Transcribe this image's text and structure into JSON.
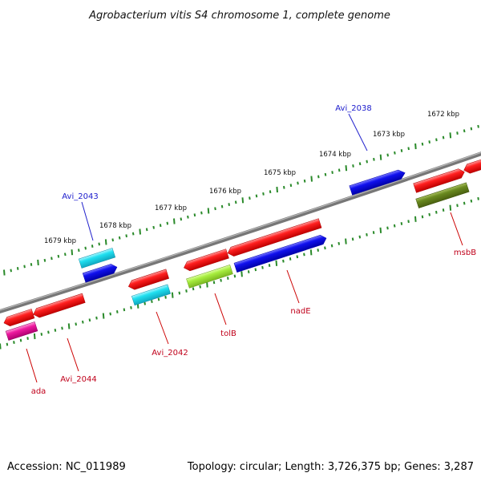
{
  "title": "Agrobacterium vitis S4 chromosome 1, complete genome",
  "accession": "Accession: NC_011989",
  "summary": "Topology: circular; Length: 3,726,375 bp; Genes: 3,287",
  "scale_ticks": [
    "1672 kbp",
    "1673 kbp",
    "1674 kbp",
    "1675 kbp",
    "1676 kbp",
    "1677 kbp",
    "1678 kbp",
    "1679 kbp"
  ],
  "gene_labels": {
    "avi_2038": "Avi_2038",
    "avi_2043": "Avi_2043",
    "msbB": "msbB",
    "nadE": "nadE",
    "tolB": "tolB",
    "avi_2042": "Avi_2042",
    "avi_2044": "Avi_2044",
    "ada": "ada"
  },
  "colors": {
    "backbone": "#808080",
    "tick": "#2a8a2a",
    "red": "#ff2020",
    "blue": "#1010ee",
    "cyan": "#20e0f0",
    "lime": "#a8ee40",
    "olive": "#6a8a20",
    "magenta": "#ee1aa0",
    "label_blue": "#1a1acc",
    "label_red": "#c0001a"
  }
}
